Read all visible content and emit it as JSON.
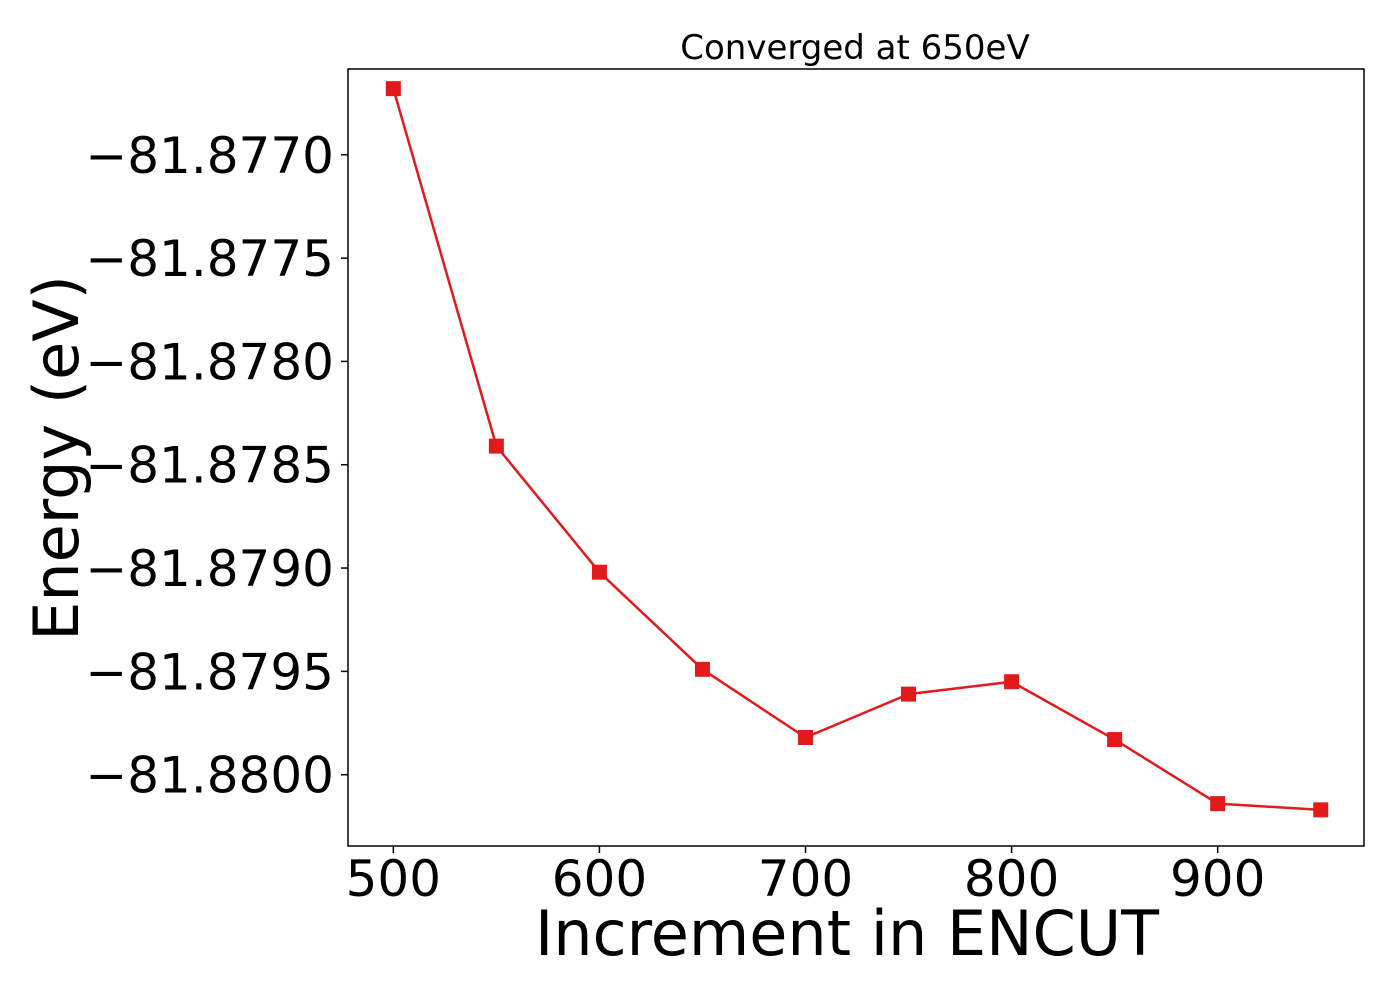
{
  "chart_data": {
    "type": "line",
    "title": "Converged at 650eV",
    "xlabel": "Increment in ENCUT",
    "ylabel": "Energy (eV)",
    "x": [
      500,
      550,
      600,
      650,
      700,
      750,
      800,
      850,
      900,
      950
    ],
    "series": [
      {
        "values": [
          -81.87668,
          -81.87841,
          -81.87902,
          -81.87949,
          -81.87982,
          -81.87961,
          -81.87955,
          -81.87983,
          -81.88014,
          -81.88017
        ],
        "color": "#e31a1c",
        "marker": "square"
      }
    ],
    "xlim": [
      478,
      971
    ],
    "ylim": [
      -81.880345,
      -81.876585
    ],
    "xticks": [
      500,
      600,
      700,
      800,
      900
    ],
    "xtick_labels": [
      "500",
      "600",
      "700",
      "800",
      "900"
    ],
    "yticks": [
      -81.877,
      -81.8775,
      -81.878,
      -81.8785,
      -81.879,
      -81.8795,
      -81.88
    ],
    "ytick_labels": [
      "−81.8770",
      "−81.8775",
      "−81.8780",
      "−81.8785",
      "−81.8790",
      "−81.8795",
      "−81.8800"
    ],
    "grid": false,
    "legend": false
  }
}
